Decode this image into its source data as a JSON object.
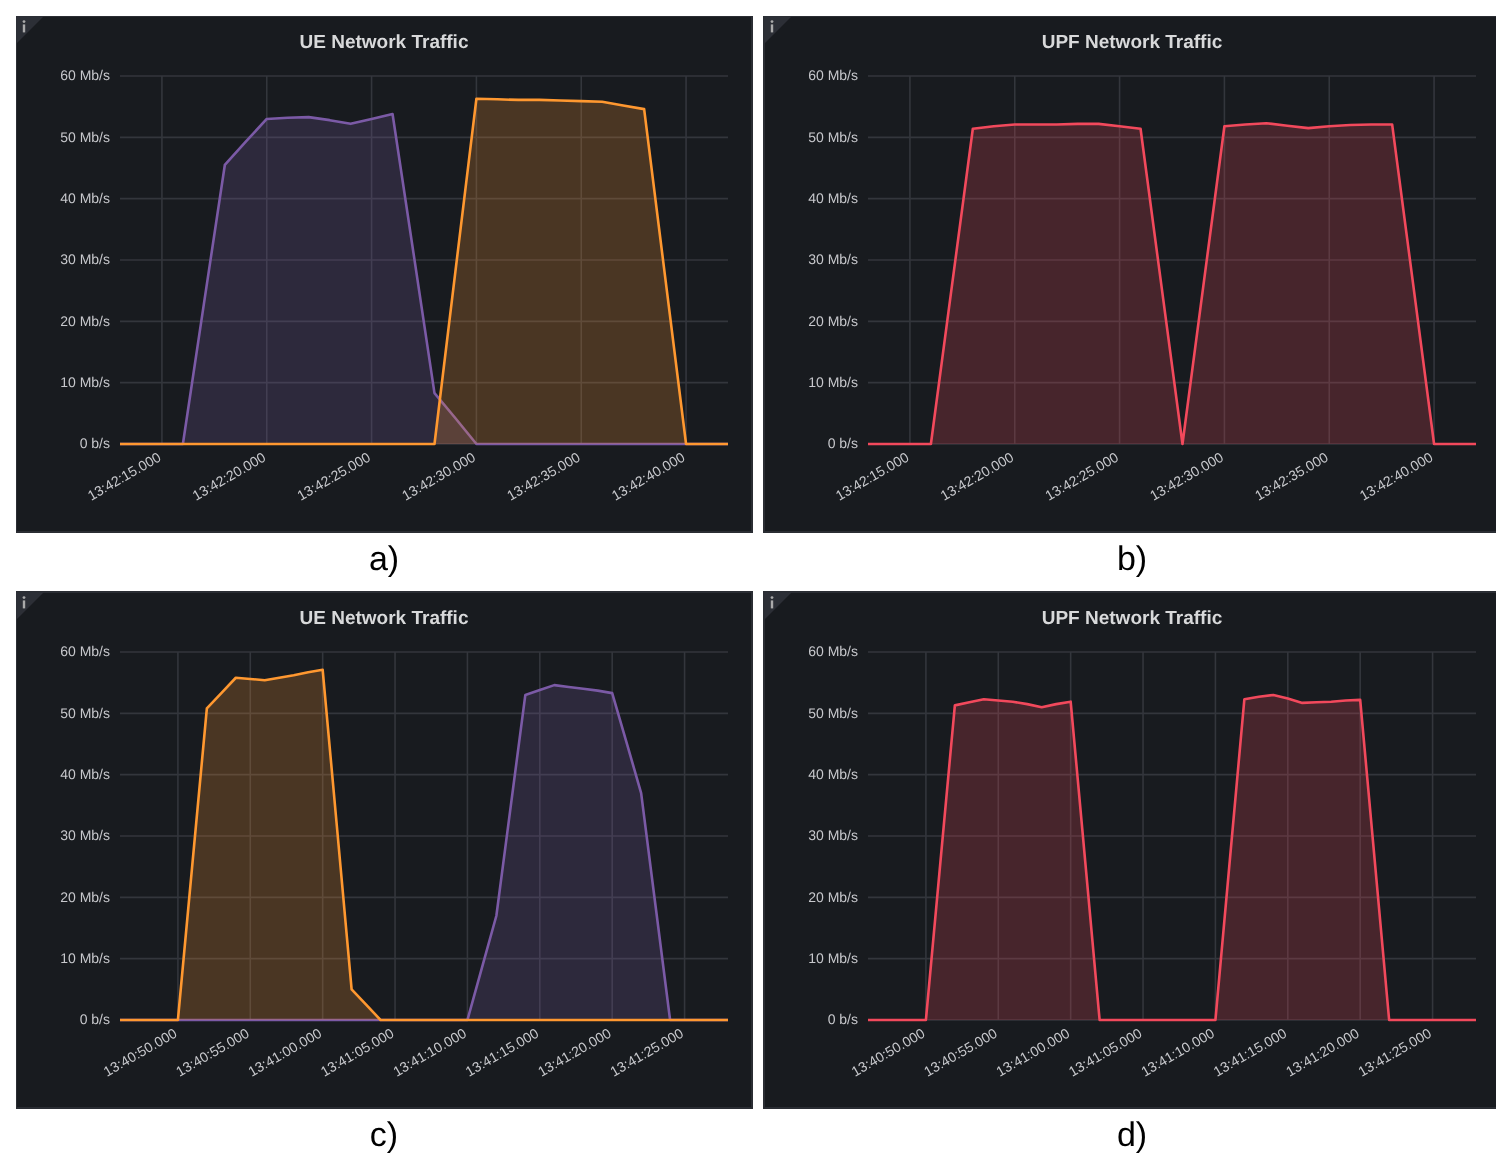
{
  "chart_data": [
    {
      "type": "area",
      "title": "UE Network Traffic",
      "annotations": [
        "a)"
      ],
      "grid": true,
      "categories": [
        null,
        null,
        "13:42:15.000",
        null,
        null,
        null,
        null,
        "13:42:20.000",
        null,
        null,
        null,
        null,
        "13:42:25.000",
        null,
        null,
        null,
        null,
        "13:42:30.000",
        null,
        null,
        null,
        null,
        "13:42:35.000",
        null,
        null,
        null,
        null,
        "13:42:40.000",
        null,
        null
      ],
      "ylim": [
        0,
        60
      ],
      "yticks": [
        {
          "value": 0,
          "label": "0 b/s"
        },
        {
          "value": 10,
          "label": "10 Mb/s"
        },
        {
          "value": 20,
          "label": "20 Mb/s"
        },
        {
          "value": 30,
          "label": "30 Mb/s"
        },
        {
          "value": 40,
          "label": "40 Mb/s"
        },
        {
          "value": 50,
          "label": "50 Mb/s"
        },
        {
          "value": 60,
          "label": "60 Mb/s"
        }
      ],
      "series": [
        {
          "color": "#7b5aa6",
          "values": [
            0,
            0,
            0,
            0,
            22.8,
            45.5,
            49.3,
            53,
            53.2,
            53.3,
            52.8,
            52.2,
            53,
            53.8,
            31.1,
            8.3,
            4.2,
            0,
            0,
            0,
            0,
            0,
            0,
            0,
            0,
            0,
            0,
            0,
            0,
            0
          ]
        },
        {
          "color": "#ff9830",
          "values": [
            0,
            0,
            0,
            0,
            0,
            0,
            0,
            0,
            0,
            0,
            0,
            0,
            0,
            0,
            0,
            0,
            28.2,
            56.3,
            56.2,
            56.1,
            56.1,
            56,
            55.9,
            55.8,
            55.2,
            54.6,
            27.3,
            0,
            0,
            0
          ]
        }
      ]
    },
    {
      "type": "area",
      "title": "UPF Network Traffic",
      "annotations": [
        "b)"
      ],
      "grid": true,
      "categories": [
        null,
        null,
        "13:42:15.000",
        null,
        null,
        null,
        null,
        "13:42:20.000",
        null,
        null,
        null,
        null,
        "13:42:25.000",
        null,
        null,
        null,
        null,
        "13:42:30.000",
        null,
        null,
        null,
        null,
        "13:42:35.000",
        null,
        null,
        null,
        null,
        "13:42:40.000",
        null,
        null
      ],
      "ylim": [
        0,
        60
      ],
      "yticks": [
        {
          "value": 0,
          "label": "0 b/s"
        },
        {
          "value": 10,
          "label": "10 Mb/s"
        },
        {
          "value": 20,
          "label": "20 Mb/s"
        },
        {
          "value": 30,
          "label": "30 Mb/s"
        },
        {
          "value": 40,
          "label": "40 Mb/s"
        },
        {
          "value": 50,
          "label": "50 Mb/s"
        },
        {
          "value": 60,
          "label": "60 Mb/s"
        }
      ],
      "series": [
        {
          "color": "#f2495c",
          "values": [
            0,
            0,
            0,
            0,
            25.7,
            51.4,
            51.8,
            52.1,
            52.1,
            52.1,
            52.2,
            52.2,
            51.8,
            51.4,
            25.7,
            0,
            25.9,
            51.8,
            52.1,
            52.3,
            51.9,
            51.5,
            51.8,
            52,
            52.1,
            52.1,
            26.1,
            0,
            0,
            0
          ]
        }
      ]
    },
    {
      "type": "area",
      "title": "UE Network Traffic",
      "annotations": [
        "c)"
      ],
      "grid": true,
      "categories": [
        null,
        null,
        null,
        null,
        "13:40:50.000",
        null,
        null,
        null,
        null,
        "13:40:55.000",
        null,
        null,
        null,
        null,
        "13:41:00.000",
        null,
        null,
        null,
        null,
        "13:41:05.000",
        null,
        null,
        null,
        null,
        "13:41:10.000",
        null,
        null,
        null,
        null,
        "13:41:15.000",
        null,
        null,
        null,
        null,
        "13:41:20.000",
        null,
        null,
        null,
        null,
        "13:41:25.000",
        null,
        null,
        null
      ],
      "ylim": [
        0,
        60
      ],
      "yticks": [
        {
          "value": 0,
          "label": "0 b/s"
        },
        {
          "value": 10,
          "label": "10 Mb/s"
        },
        {
          "value": 20,
          "label": "20 Mb/s"
        },
        {
          "value": 30,
          "label": "30 Mb/s"
        },
        {
          "value": 40,
          "label": "40 Mb/s"
        },
        {
          "value": 50,
          "label": "50 Mb/s"
        },
        {
          "value": 60,
          "label": "60 Mb/s"
        }
      ],
      "series": [
        {
          "color": "#7b5aa6",
          "values": [
            0,
            0,
            0,
            0,
            0,
            0,
            0,
            0,
            0,
            0,
            0,
            0,
            0,
            0,
            0,
            0,
            0,
            0,
            0,
            0,
            0,
            0,
            0,
            0,
            0,
            8.5,
            17,
            35,
            53,
            53.8,
            54.6,
            54.3,
            54,
            53.7,
            53.3,
            45.2,
            37,
            18.5,
            0,
            0,
            0,
            0,
            0
          ]
        },
        {
          "color": "#ff9830",
          "values": [
            0,
            0,
            0,
            0,
            0,
            25.4,
            50.8,
            53.3,
            55.8,
            55.6,
            55.4,
            55.8,
            56.2,
            56.7,
            57.1,
            31.1,
            5,
            2.5,
            0,
            0,
            0,
            0,
            0,
            0,
            0,
            0,
            0,
            0,
            0,
            0,
            0,
            0,
            0,
            0,
            0,
            0,
            0,
            0,
            0,
            0,
            0,
            0,
            0
          ]
        }
      ]
    },
    {
      "type": "area",
      "title": "UPF Network Traffic",
      "annotations": [
        "d)"
      ],
      "grid": true,
      "categories": [
        null,
        null,
        null,
        null,
        "13:40:50.000",
        null,
        null,
        null,
        null,
        "13:40:55.000",
        null,
        null,
        null,
        null,
        "13:41:00.000",
        null,
        null,
        null,
        null,
        "13:41:05.000",
        null,
        null,
        null,
        null,
        "13:41:10.000",
        null,
        null,
        null,
        null,
        "13:41:15.000",
        null,
        null,
        null,
        null,
        "13:41:20.000",
        null,
        null,
        null,
        null,
        "13:41:25.000",
        null,
        null,
        null
      ],
      "ylim": [
        0,
        60
      ],
      "yticks": [
        {
          "value": 0,
          "label": "0 b/s"
        },
        {
          "value": 10,
          "label": "10 Mb/s"
        },
        {
          "value": 20,
          "label": "20 Mb/s"
        },
        {
          "value": 30,
          "label": "30 Mb/s"
        },
        {
          "value": 40,
          "label": "40 Mb/s"
        },
        {
          "value": 50,
          "label": "50 Mb/s"
        },
        {
          "value": 60,
          "label": "60 Mb/s"
        }
      ],
      "series": [
        {
          "color": "#f2495c",
          "values": [
            0,
            0,
            0,
            0,
            0,
            25.7,
            51.3,
            51.8,
            52.3,
            52.1,
            51.9,
            51.5,
            51,
            51.5,
            51.9,
            26,
            0,
            0,
            0,
            0,
            0,
            0,
            0,
            0,
            0,
            26.2,
            52.3,
            52.7,
            53,
            52.4,
            51.7,
            51.8,
            51.9,
            52.1,
            52.2,
            26.1,
            0,
            0,
            0,
            0,
            0,
            0,
            0
          ]
        }
      ]
    }
  ]
}
